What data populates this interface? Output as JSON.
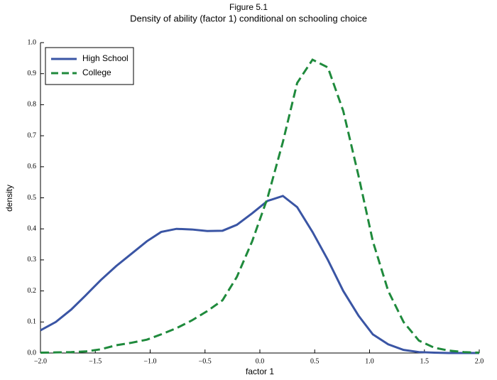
{
  "chart_data": {
    "type": "line",
    "title": "Figure 5.1",
    "subtitle": "Density of ability (factor 1) conditional on schooling choice",
    "x_label": "factor 1",
    "y_label": "density",
    "x": [
      -2.0,
      -1.86,
      -1.72,
      -1.59,
      -1.45,
      -1.31,
      -1.17,
      -1.03,
      -0.9,
      -0.76,
      -0.62,
      -0.48,
      -0.34,
      -0.21,
      -0.07,
      0.07,
      0.21,
      0.34,
      0.48,
      0.62,
      0.76,
      0.9,
      1.03,
      1.17,
      1.31,
      1.45,
      1.59,
      1.72,
      1.86,
      2.0
    ],
    "series": [
      {
        "name": "High School",
        "color": "#3a55a4",
        "line_style": "solid",
        "values": [
          0.073,
          0.1,
          0.14,
          0.185,
          0.235,
          0.28,
          0.32,
          0.36,
          0.39,
          0.4,
          0.398,
          0.393,
          0.394,
          0.413,
          0.45,
          0.49,
          0.506,
          0.47,
          0.39,
          0.3,
          0.2,
          0.12,
          0.06,
          0.028,
          0.01,
          0.003,
          0.001,
          0,
          0,
          0
        ]
      },
      {
        "name": "College",
        "color": "#1f8a3c",
        "line_style": "dashed",
        "values": [
          0.001,
          0.002,
          0.003,
          0.005,
          0.012,
          0.025,
          0.033,
          0.043,
          0.06,
          0.08,
          0.105,
          0.135,
          0.17,
          0.245,
          0.36,
          0.5,
          0.68,
          0.87,
          0.945,
          0.92,
          0.78,
          0.57,
          0.36,
          0.2,
          0.1,
          0.04,
          0.017,
          0.008,
          0.003,
          0.001
        ]
      }
    ],
    "xlim": [
      -2.0,
      2.0
    ],
    "xticks": [
      {
        "value": -2.0,
        "label": "−2.0"
      },
      {
        "value": -1.5,
        "label": "−1.5"
      },
      {
        "value": -1.0,
        "label": "−1.0"
      },
      {
        "value": -0.5,
        "label": "−0.5"
      },
      {
        "value": 0,
        "label": "0.0"
      },
      {
        "value": 0.5,
        "label": "0.5"
      },
      {
        "value": 1.0,
        "label": "1.0"
      },
      {
        "value": 1.5,
        "label": "1.5"
      },
      {
        "value": 2.0,
        "label": "2.0"
      }
    ],
    "ylim": [
      0,
      1.0
    ],
    "yticks": [
      {
        "value": 0,
        "label": "0.0"
      },
      {
        "value": 0.1,
        "label": "0.1"
      },
      {
        "value": 0.2,
        "label": "0.2"
      },
      {
        "value": 0.3,
        "label": "0.3"
      },
      {
        "value": 0.4,
        "label": "0.4"
      },
      {
        "value": 0.5,
        "label": "0.5"
      },
      {
        "value": 0.6,
        "label": "0.6"
      },
      {
        "value": 0.7,
        "label": "0.7"
      },
      {
        "value": 0.8,
        "label": "0.8"
      },
      {
        "value": 0.9,
        "label": "0.9"
      },
      {
        "value": 1.0,
        "label": "1.0"
      }
    ],
    "grid": false,
    "legend": "upper left"
  }
}
